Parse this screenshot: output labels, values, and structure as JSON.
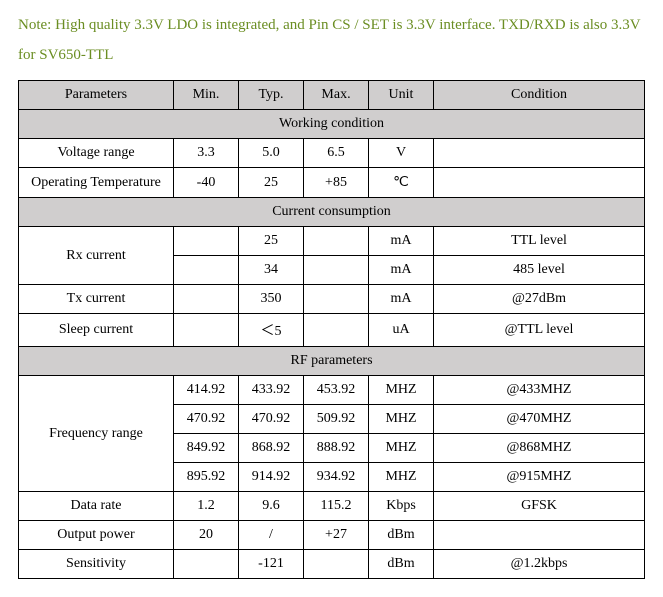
{
  "note": "Note: High quality 3.3V LDO is integrated, and Pin CS / SET is 3.3V interface. TXD/RXD is also 3.3V for SV650-TTL",
  "headers": {
    "parameters": "Parameters",
    "min": "Min.",
    "typ": "Typ.",
    "max": "Max.",
    "unit": "Unit",
    "condition": "Condition"
  },
  "sections": {
    "working": "Working condition",
    "current": "Current consumption",
    "rf": "RF parameters"
  },
  "rows": {
    "voltage": {
      "label": "Voltage range",
      "min": "3.3",
      "typ": "5.0",
      "max": "6.5",
      "unit": "V",
      "cond": ""
    },
    "optemp": {
      "label": "Operating Temperature",
      "min": "-40",
      "typ": "25",
      "max": "+85",
      "unit": "℃",
      "cond": ""
    },
    "rx": {
      "label": "Rx current"
    },
    "rx1": {
      "min": "",
      "typ": "25",
      "max": "",
      "unit": "mA",
      "cond": "TTL level"
    },
    "rx2": {
      "min": "",
      "typ": "34",
      "max": "",
      "unit": "mA",
      "cond": "485 level"
    },
    "tx": {
      "label": "Tx current",
      "min": "",
      "typ": "350",
      "max": "",
      "unit": "mA",
      "cond": "@27dBm"
    },
    "sleep": {
      "label": "Sleep current",
      "min": "",
      "typ": "＜5",
      "max": "",
      "unit": "uA",
      "cond": "@TTL level"
    },
    "freq": {
      "label": "Frequency range"
    },
    "freq1": {
      "min": "414.92",
      "typ": "433.92",
      "max": "453.92",
      "unit": "MHZ",
      "cond": "@433MHZ"
    },
    "freq2": {
      "min": "470.92",
      "typ": "470.92",
      "max": "509.92",
      "unit": "MHZ",
      "cond": "@470MHZ"
    },
    "freq3": {
      "min": "849.92",
      "typ": "868.92",
      "max": "888.92",
      "unit": "MHZ",
      "cond": "@868MHZ"
    },
    "freq4": {
      "min": "895.92",
      "typ": "914.92",
      "max": "934.92",
      "unit": "MHZ",
      "cond": "@915MHZ"
    },
    "datarate": {
      "label": "Data rate",
      "min": "1.2",
      "typ": "9.6",
      "max": "115.2",
      "unit": "Kbps",
      "cond": "GFSK"
    },
    "outpower": {
      "label": "Output power",
      "min": "20",
      "typ": "/",
      "max": "+27",
      "unit": "dBm",
      "cond": ""
    },
    "sens": {
      "label": "Sensitivity",
      "min": "",
      "typ": "-121",
      "max": "",
      "unit": "dBm",
      "cond": "@1.2kbps"
    }
  },
  "colors": {
    "note_color": "#6b8e23",
    "header_bg": "#d0cece",
    "cell_bg": "#ffffff",
    "border": "#000000",
    "text": "#000000"
  },
  "fonts": {
    "family": "Times New Roman",
    "note_size": 15,
    "cell_size": 14
  }
}
